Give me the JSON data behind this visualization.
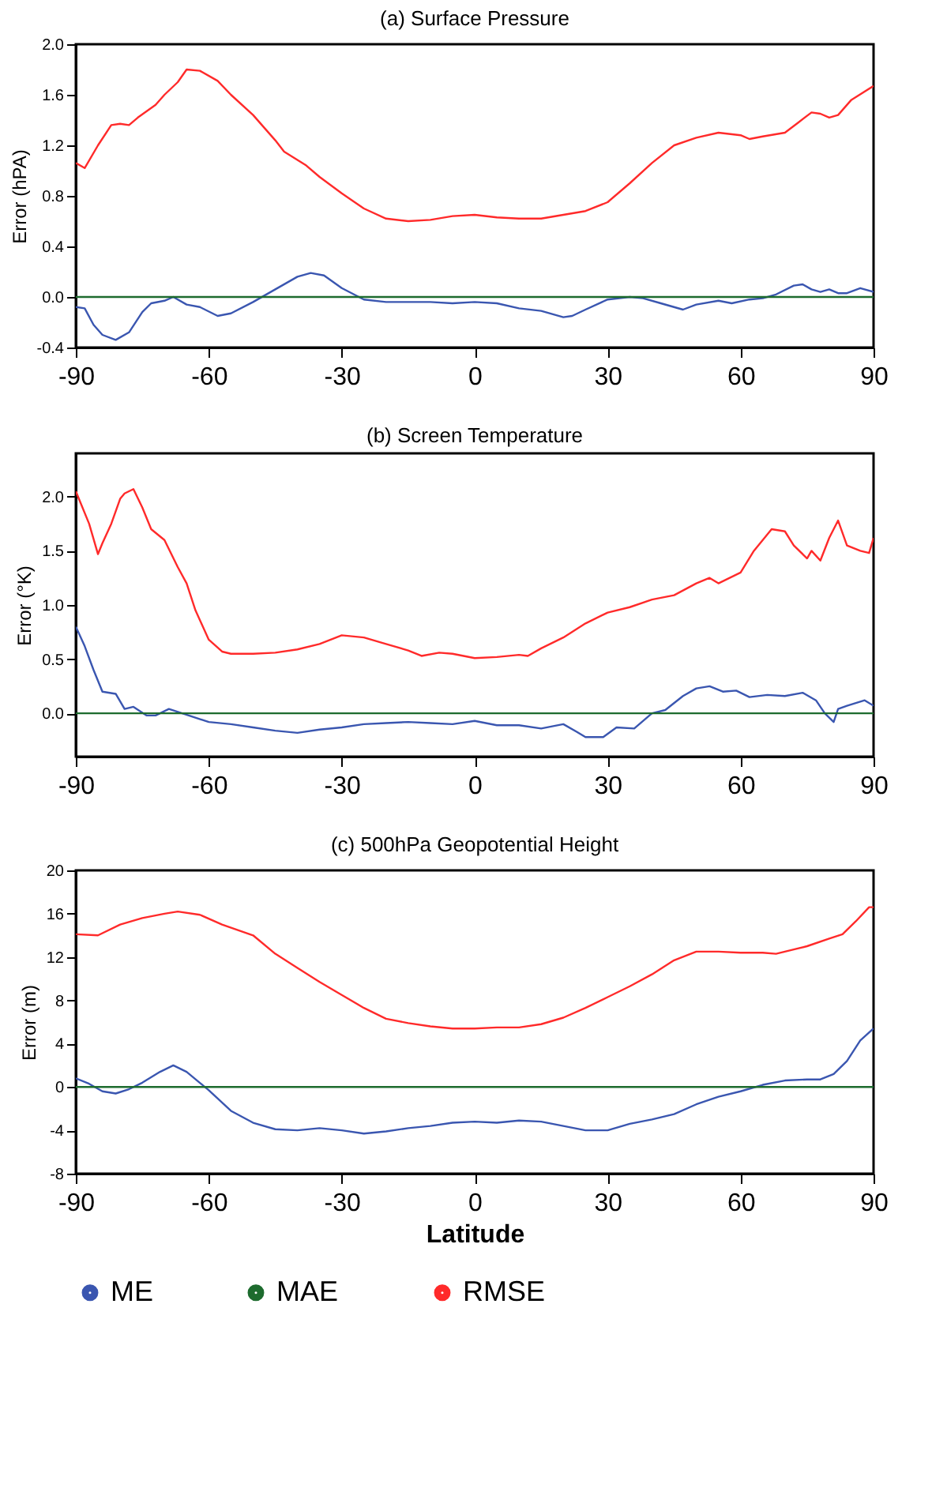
{
  "chart_data": [
    {
      "type": "line",
      "title": "(a) Surface Pressure",
      "ylabel": "Error (hPA)",
      "xlim": [
        -90,
        90
      ],
      "xticks": [
        -90,
        -60,
        -30,
        0,
        30,
        60,
        90
      ],
      "ylim": [
        -0.4,
        2.0
      ],
      "yticks": [
        {
          "value": -0.4,
          "label": "-0.4"
        },
        {
          "value": 0,
          "label": "0.0"
        },
        {
          "value": 0.4,
          "label": "0.4"
        },
        {
          "value": 0.8,
          "label": "0.8"
        },
        {
          "value": 1.2,
          "label": "1.2"
        },
        {
          "value": 1.6,
          "label": "1.6"
        },
        {
          "value": 2.0,
          "label": "2.0"
        }
      ],
      "grid": false,
      "legend": false,
      "line_style": "solid",
      "marker": "none",
      "series": [
        {
          "color": "#3a56b0",
          "x": [
            -90,
            -88,
            -86,
            -84,
            -81,
            -78,
            -75,
            -73,
            -70,
            -68,
            -65,
            -62,
            -58,
            -55,
            -50,
            -45,
            -40,
            -37,
            -34,
            -30,
            -25,
            -20,
            -15,
            -10,
            -5,
            0,
            5,
            10,
            15,
            20,
            22,
            25,
            30,
            35,
            38,
            42,
            47,
            50,
            55,
            58,
            62,
            65,
            68,
            72,
            74,
            76,
            78,
            80,
            82,
            84,
            87,
            90
          ],
          "values": [
            -0.08,
            -0.09,
            -0.22,
            -0.3,
            -0.34,
            -0.28,
            -0.12,
            -0.05,
            -0.03,
            0.0,
            -0.06,
            -0.08,
            -0.15,
            -0.13,
            -0.04,
            0.06,
            0.16,
            0.19,
            0.17,
            0.07,
            -0.02,
            -0.04,
            -0.04,
            -0.04,
            -0.05,
            -0.04,
            -0.05,
            -0.09,
            -0.11,
            -0.16,
            -0.15,
            -0.1,
            -0.02,
            0.0,
            -0.01,
            -0.05,
            -0.1,
            -0.06,
            -0.03,
            -0.05,
            -0.02,
            -0.01,
            0.02,
            0.09,
            0.1,
            0.06,
            0.04,
            0.06,
            0.03,
            0.03,
            0.07,
            0.04
          ]
        },
        {
          "color": "#1d6b2e",
          "x": [
            -90,
            90
          ],
          "values": [
            0,
            0
          ]
        },
        {
          "color": "#ff2a2a",
          "x": [
            -90,
            -88,
            -85,
            -82,
            -80,
            -78,
            -76,
            -72,
            -70,
            -67,
            -65,
            -62,
            -58,
            -55,
            -50,
            -45,
            -43,
            -38,
            -35,
            -30,
            -25,
            -20,
            -15,
            -10,
            -5,
            0,
            5,
            10,
            15,
            20,
            25,
            30,
            35,
            40,
            45,
            50,
            55,
            60,
            62,
            65,
            70,
            73,
            76,
            78,
            80,
            82,
            85,
            90
          ],
          "values": [
            1.06,
            1.02,
            1.2,
            1.36,
            1.37,
            1.36,
            1.42,
            1.52,
            1.6,
            1.7,
            1.8,
            1.79,
            1.71,
            1.6,
            1.44,
            1.24,
            1.15,
            1.04,
            0.95,
            0.82,
            0.7,
            0.62,
            0.6,
            0.61,
            0.64,
            0.65,
            0.63,
            0.62,
            0.62,
            0.65,
            0.68,
            0.75,
            0.9,
            1.06,
            1.2,
            1.26,
            1.3,
            1.28,
            1.25,
            1.27,
            1.3,
            1.38,
            1.46,
            1.45,
            1.42,
            1.44,
            1.56,
            1.67
          ]
        }
      ]
    },
    {
      "type": "line",
      "title": "(b) Screen Temperature",
      "ylabel": "Error (°K)",
      "xlim": [
        -90,
        90
      ],
      "xticks": [
        -90,
        -60,
        -30,
        0,
        30,
        60,
        90
      ],
      "ylim": [
        -0.4,
        2.4
      ],
      "yticks": [
        {
          "value": 0,
          "label": "0.0"
        },
        {
          "value": 0.5,
          "label": "0.5"
        },
        {
          "value": 1.0,
          "label": "1.0"
        },
        {
          "value": 1.5,
          "label": "1.5"
        },
        {
          "value": 2.0,
          "label": "2.0"
        }
      ],
      "grid": false,
      "legend": false,
      "line_style": "solid",
      "marker": "none",
      "series": [
        {
          "color": "#3a56b0",
          "x": [
            -90,
            -88,
            -86,
            -84,
            -81,
            -79,
            -77,
            -74,
            -72,
            -69,
            -66,
            -60,
            -55,
            -50,
            -45,
            -40,
            -35,
            -30,
            -25,
            -20,
            -15,
            -10,
            -5,
            0,
            5,
            10,
            15,
            20,
            23,
            25,
            29,
            32,
            36,
            40,
            43,
            47,
            50,
            53,
            56,
            59,
            62,
            66,
            70,
            74,
            77,
            79,
            81,
            82,
            84,
            88,
            90
          ],
          "values": [
            0.8,
            0.62,
            0.4,
            0.2,
            0.18,
            0.04,
            0.06,
            -0.02,
            -0.02,
            0.04,
            0.0,
            -0.08,
            -0.1,
            -0.13,
            -0.16,
            -0.18,
            -0.15,
            -0.13,
            -0.1,
            -0.09,
            -0.08,
            -0.09,
            -0.1,
            -0.07,
            -0.11,
            -0.11,
            -0.14,
            -0.1,
            -0.17,
            -0.22,
            -0.22,
            -0.13,
            -0.14,
            0.0,
            0.03,
            0.16,
            0.23,
            0.25,
            0.2,
            0.21,
            0.15,
            0.17,
            0.16,
            0.19,
            0.12,
            0.0,
            -0.08,
            0.04,
            0.07,
            0.12,
            0.07
          ]
        },
        {
          "color": "#1d6b2e",
          "x": [
            -90,
            90
          ],
          "values": [
            0,
            0
          ]
        },
        {
          "color": "#ff2a2a",
          "x": [
            -90,
            -89,
            -87,
            -85,
            -84,
            -82,
            -80,
            -79,
            -77,
            -75,
            -73,
            -70,
            -67,
            -65,
            -63,
            -60,
            -57,
            -55,
            -50,
            -45,
            -40,
            -35,
            -30,
            -25,
            -20,
            -15,
            -12,
            -8,
            -5,
            0,
            5,
            10,
            12,
            15,
            20,
            25,
            30,
            35,
            40,
            45,
            50,
            53,
            55,
            60,
            63,
            67,
            70,
            72,
            75,
            76,
            78,
            80,
            82,
            84,
            87,
            89,
            90
          ],
          "values": [
            2.05,
            1.95,
            1.75,
            1.47,
            1.57,
            1.75,
            1.98,
            2.03,
            2.07,
            1.9,
            1.7,
            1.6,
            1.35,
            1.2,
            0.95,
            0.68,
            0.57,
            0.55,
            0.55,
            0.56,
            0.59,
            0.64,
            0.72,
            0.7,
            0.64,
            0.58,
            0.53,
            0.56,
            0.55,
            0.51,
            0.52,
            0.54,
            0.53,
            0.6,
            0.7,
            0.83,
            0.93,
            0.98,
            1.05,
            1.09,
            1.2,
            1.25,
            1.2,
            1.3,
            1.5,
            1.7,
            1.68,
            1.55,
            1.43,
            1.5,
            1.41,
            1.62,
            1.78,
            1.55,
            1.5,
            1.48,
            1.62
          ]
        }
      ]
    },
    {
      "type": "line",
      "title": "(c) 500hPa Geopotential Height",
      "xlabel": "Latitude",
      "ylabel": "Error (m)",
      "xlim": [
        -90,
        90
      ],
      "xticks": [
        -90,
        -60,
        -30,
        0,
        30,
        60,
        90
      ],
      "ylim": [
        -8,
        20
      ],
      "yticks": [
        -8,
        -4,
        0,
        4,
        8,
        12,
        16,
        20
      ],
      "grid": false,
      "legend": "bottom",
      "line_style": "solid",
      "marker": "none",
      "series": [
        {
          "name": "ME",
          "color": "#3a56b0",
          "x": [
            -90,
            -87,
            -84,
            -81,
            -78,
            -75,
            -71,
            -68,
            -65,
            -60,
            -55,
            -50,
            -45,
            -40,
            -35,
            -30,
            -25,
            -20,
            -15,
            -10,
            -5,
            0,
            5,
            10,
            15,
            20,
            25,
            30,
            35,
            40,
            45,
            50,
            55,
            60,
            65,
            70,
            75,
            78,
            81,
            84,
            87,
            90
          ],
          "values": [
            0.8,
            0.3,
            -0.4,
            -0.6,
            -0.2,
            0.4,
            1.4,
            2.0,
            1.4,
            -0.3,
            -2.2,
            -3.3,
            -3.9,
            -4.0,
            -3.8,
            -4.0,
            -4.3,
            -4.1,
            -3.8,
            -3.6,
            -3.3,
            -3.2,
            -3.3,
            -3.1,
            -3.2,
            -3.6,
            -4.0,
            -4.0,
            -3.4,
            -3.0,
            -2.5,
            -1.6,
            -0.9,
            -0.4,
            0.2,
            0.6,
            0.7,
            0.7,
            1.2,
            2.4,
            4.3,
            5.4
          ]
        },
        {
          "name": "MAE",
          "color": "#1d6b2e",
          "x": [
            -90,
            90
          ],
          "values": [
            0,
            0
          ]
        },
        {
          "name": "RMSE",
          "color": "#ff2a2a",
          "x": [
            -90,
            -85,
            -80,
            -75,
            -70,
            -67,
            -62,
            -57,
            -50,
            -45,
            -40,
            -35,
            -30,
            -25,
            -20,
            -15,
            -10,
            -5,
            0,
            5,
            10,
            15,
            20,
            25,
            30,
            35,
            40,
            45,
            50,
            55,
            60,
            65,
            68,
            72,
            75,
            80,
            83,
            86,
            89,
            90
          ],
          "values": [
            14.1,
            14.0,
            15.0,
            15.6,
            16.0,
            16.2,
            15.9,
            15.0,
            14.0,
            12.3,
            11.0,
            9.7,
            8.5,
            7.3,
            6.3,
            5.9,
            5.6,
            5.4,
            5.4,
            5.5,
            5.5,
            5.8,
            6.4,
            7.3,
            8.3,
            9.3,
            10.4,
            11.7,
            12.5,
            12.5,
            12.4,
            12.4,
            12.3,
            12.7,
            13.0,
            13.7,
            14.1,
            15.3,
            16.6,
            16.6
          ]
        }
      ]
    }
  ]
}
